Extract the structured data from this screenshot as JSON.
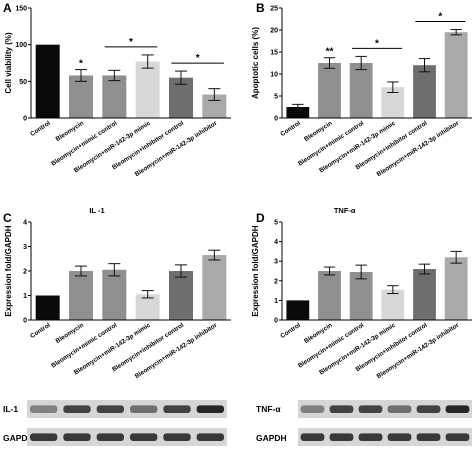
{
  "chart_data": [
    {
      "id": "A",
      "panel": "A",
      "type": "bar",
      "title": "",
      "ylabel": "Cell viability (%)",
      "ylim": [
        0,
        150
      ],
      "yticks": [
        0,
        50,
        100,
        150
      ],
      "categories": [
        "Control",
        "Bleomycin",
        "Bleomycin+mimic control",
        "Bleomycin+miR-142-3p mimic",
        "Bleomycin+inhibitor control",
        "Bleomycin+miR-142-3p inhibitor"
      ],
      "values": [
        100,
        58,
        58,
        77,
        55,
        32
      ],
      "errors": [
        0,
        8,
        7,
        9,
        9,
        8
      ],
      "colors": [
        "#0a0a0a",
        "#8f8f8f",
        "#8f8f8f",
        "#d8d8d8",
        "#6e6e6e",
        "#a9a9a9"
      ],
      "annotations": [
        {
          "text": "*",
          "bar": 1
        },
        {
          "text": "*",
          "from": 2,
          "to": 3
        },
        {
          "text": "*",
          "from": 4,
          "to": 5
        }
      ]
    },
    {
      "id": "B",
      "panel": "B",
      "type": "bar",
      "title": "",
      "ylabel": "Apoptotic cells (%)",
      "ylim": [
        0,
        25
      ],
      "yticks": [
        0,
        5,
        10,
        15,
        20,
        25
      ],
      "categories": [
        "Control",
        "Bleomycin",
        "Bleomycin+mimic control",
        "Bleomycin+miR-142-3p mimic",
        "Bleomycin+inhibitor control",
        "Bleomycin+miR-142-3p inhibitor"
      ],
      "values": [
        2.5,
        12.5,
        12.5,
        7,
        12,
        19.5
      ],
      "errors": [
        0.6,
        1.2,
        1.5,
        1.2,
        1.5,
        0.6
      ],
      "colors": [
        "#0a0a0a",
        "#8f8f8f",
        "#8f8f8f",
        "#d8d8d8",
        "#6e6e6e",
        "#a9a9a9"
      ],
      "annotations": [
        {
          "text": "**",
          "bar": 1
        },
        {
          "text": "*",
          "from": 2,
          "to": 3
        },
        {
          "text": "*",
          "from": 4,
          "to": 5
        }
      ]
    },
    {
      "id": "C",
      "panel": "C",
      "type": "bar",
      "title": "IL -1",
      "ylabel": "Expression fold/GAPDH",
      "ylim": [
        0,
        4
      ],
      "yticks": [
        0,
        1,
        2,
        3,
        4
      ],
      "categories": [
        "Control",
        "Bleomycin",
        "Bleomycin+mimic control",
        "Bleomycin+miR-142-3p mimic",
        "Bleomycin+inhibitor control",
        "Bleomycin+miR-142-3p inhibitor"
      ],
      "values": [
        1.0,
        2.0,
        2.05,
        1.05,
        2.0,
        2.65
      ],
      "errors": [
        0,
        0.2,
        0.25,
        0.15,
        0.25,
        0.2
      ],
      "colors": [
        "#0a0a0a",
        "#8f8f8f",
        "#8f8f8f",
        "#d8d8d8",
        "#6e6e6e",
        "#a9a9a9"
      ],
      "annotations": []
    },
    {
      "id": "D",
      "panel": "D",
      "type": "bar",
      "title": "TNF-α",
      "ylabel": "Expression fold/GAPDH",
      "ylim": [
        0,
        5
      ],
      "yticks": [
        0,
        1,
        2,
        3,
        4,
        5
      ],
      "categories": [
        "Control",
        "Bleomycin",
        "Bleomycin+mimic control",
        "Bleomycin+miR-142-3p mimic",
        "Bleomycin+inhibitor control",
        "Bleomycin+miR-142-3p inhibitor"
      ],
      "values": [
        1.0,
        2.5,
        2.45,
        1.55,
        2.6,
        3.2
      ],
      "errors": [
        0,
        0.2,
        0.35,
        0.2,
        0.25,
        0.3
      ],
      "colors": [
        "#0a0a0a",
        "#8f8f8f",
        "#8f8f8f",
        "#d8d8d8",
        "#6e6e6e",
        "#a9a9a9"
      ],
      "annotations": []
    }
  ],
  "blots": {
    "left": {
      "top_label": "IL-1",
      "bottom_label": "GAPDH",
      "top_intensity": [
        0.45,
        0.8,
        0.8,
        0.55,
        0.8,
        0.95
      ],
      "bottom_intensity": [
        0.85,
        0.85,
        0.85,
        0.85,
        0.85,
        0.85
      ]
    },
    "right": {
      "top_label": "TNF-α",
      "bottom_label": "GAPDH",
      "top_intensity": [
        0.45,
        0.8,
        0.8,
        0.55,
        0.8,
        0.95
      ],
      "bottom_intensity": [
        0.85,
        0.85,
        0.85,
        0.85,
        0.85,
        0.85
      ]
    }
  }
}
